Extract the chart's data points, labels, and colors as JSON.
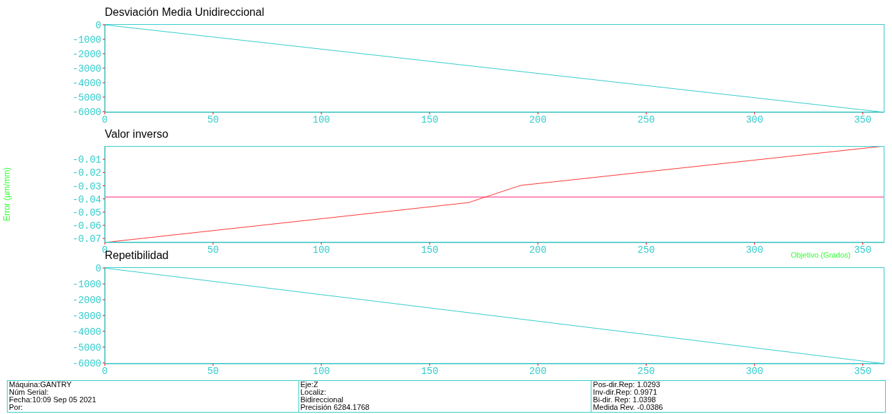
{
  "chart_data": [
    {
      "type": "line",
      "title": "Desviación Media Unidireccional",
      "x": [
        0,
        360
      ],
      "series": [
        {
          "color": "#33cccc",
          "values": [
            0,
            -6050
          ]
        }
      ],
      "xlim": [
        0,
        360
      ],
      "xticks": [
        0,
        50,
        100,
        150,
        200,
        250,
        300,
        350
      ],
      "ylim": [
        -6050,
        50
      ],
      "yticks": [
        0,
        -1000,
        -2000,
        -3000,
        -4000,
        -5000,
        -6000
      ],
      "grid": false
    },
    {
      "type": "line",
      "title": "Valor inverso",
      "xlabel": "Objetivo (Grados)",
      "ylabel": "Error (µm/mm)",
      "x": [
        0,
        168,
        192,
        360
      ],
      "series": [
        {
          "color": "#ff3333",
          "values": [
            -0.073,
            -0.0428,
            -0.0298,
            0
          ]
        }
      ],
      "ref_lines": [
        {
          "axis": "y",
          "value": -0.0386,
          "color": "#ff1a75"
        }
      ],
      "xlim": [
        0,
        360
      ],
      "xticks": [
        0,
        50,
        100,
        150,
        200,
        250,
        300,
        350
      ],
      "ylim": [
        -0.073,
        0
      ],
      "yticks": [
        -0.01,
        -0.02,
        -0.03,
        -0.04,
        -0.05,
        -0.06,
        -0.07
      ],
      "grid": false
    },
    {
      "type": "line",
      "title": "Repetibilidad",
      "x": [
        0,
        360
      ],
      "series": [
        {
          "color": "#33cccc",
          "values": [
            0,
            -6050
          ]
        }
      ],
      "xlim": [
        0,
        360
      ],
      "xticks": [
        0,
        50,
        100,
        150,
        200,
        250,
        300,
        350
      ],
      "ylim": [
        -6050,
        50
      ],
      "yticks": [
        0,
        -1000,
        -2000,
        -3000,
        -4000,
        -5000,
        -6000
      ],
      "grid": false
    },
    {
      "type": "other",
      "annotations": [
        "Máquina:GANTRY",
        "Núm Serial:",
        "Fecha:10:09 Sep 05 2021",
        "Por:",
        "Eje:Z",
        "Localiz:",
        "Bidireccional",
        "Precisión 6284.1768",
        "Pos-dir.Rep: 1.0293",
        "Inv-dir.Rep: 0.9971",
        "Bi-dir. Rep: 1.0398",
        "Medida Rev. -0.0386"
      ]
    }
  ]
}
